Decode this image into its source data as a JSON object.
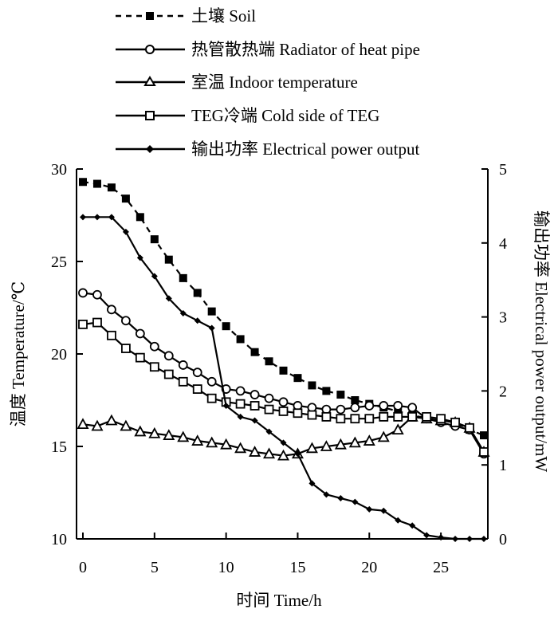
{
  "chart_data": {
    "type": "line",
    "title": "",
    "xlabel": "时间 Time/h",
    "ylabel_left": "温度 Temperature/℃",
    "ylabel_right": "输出功率 Electrical power output/mW",
    "xlim": [
      0,
      28
    ],
    "ylim_left": [
      10,
      30
    ],
    "ylim_right": [
      0,
      5
    ],
    "x_ticks": [
      0,
      5,
      10,
      15,
      20,
      25
    ],
    "y_ticks_left": [
      10,
      15,
      20,
      25,
      30
    ],
    "y_ticks_right": [
      0,
      1,
      2,
      3,
      4,
      5
    ],
    "grid": false,
    "legend_position": "top",
    "series": [
      {
        "name": "土壤 Soil",
        "axis": "left",
        "marker": "filled-square",
        "line": "dashed",
        "x": [
          0,
          1,
          2,
          3,
          4,
          5,
          6,
          7,
          8,
          9,
          10,
          11,
          12,
          13,
          14,
          15,
          16,
          17,
          18,
          19,
          20,
          21,
          22,
          23,
          24,
          25,
          26,
          27,
          28
        ],
        "y": [
          29.3,
          29.2,
          29.0,
          28.4,
          27.4,
          26.2,
          25.1,
          24.1,
          23.3,
          22.3,
          21.5,
          20.8,
          20.1,
          19.6,
          19.1,
          18.7,
          18.3,
          18.0,
          17.8,
          17.5,
          17.3,
          17.1,
          16.9,
          16.7,
          16.5,
          16.4,
          16.3,
          15.9,
          15.6
        ]
      },
      {
        "name": "热管散热端 Radiator of heat pipe",
        "axis": "left",
        "marker": "open-circle",
        "line": "solid",
        "x": [
          0,
          1,
          2,
          3,
          4,
          5,
          6,
          7,
          8,
          9,
          10,
          11,
          12,
          13,
          14,
          15,
          16,
          17,
          18,
          19,
          20,
          21,
          22,
          23,
          24,
          25,
          26,
          27,
          28
        ],
        "y": [
          23.3,
          23.2,
          22.4,
          21.8,
          21.1,
          20.4,
          19.9,
          19.4,
          19.0,
          18.5,
          18.1,
          18.0,
          17.8,
          17.6,
          17.4,
          17.2,
          17.1,
          17.0,
          17.0,
          17.1,
          17.2,
          17.2,
          17.2,
          17.1,
          16.5,
          16.3,
          16.1,
          15.9,
          14.6
        ]
      },
      {
        "name": "室温 Indoor temperature",
        "axis": "left",
        "marker": "open-triangle",
        "line": "solid",
        "x": [
          0,
          1,
          2,
          3,
          4,
          5,
          6,
          7,
          8,
          9,
          10,
          11,
          12,
          13,
          14,
          15,
          16,
          17,
          18,
          19,
          20,
          21,
          22,
          23,
          24,
          25,
          26,
          27,
          28
        ],
        "y": [
          16.2,
          16.1,
          16.4,
          16.1,
          15.8,
          15.7,
          15.6,
          15.5,
          15.3,
          15.2,
          15.1,
          14.9,
          14.7,
          14.6,
          14.5,
          14.6,
          14.9,
          15.0,
          15.1,
          15.2,
          15.3,
          15.5,
          15.9,
          16.6,
          16.5,
          16.4,
          16.3,
          16.0,
          14.7
        ]
      },
      {
        "name": "TEG冷端 Cold side of TEG",
        "axis": "left",
        "marker": "open-square",
        "line": "solid",
        "x": [
          0,
          1,
          2,
          3,
          4,
          5,
          6,
          7,
          8,
          9,
          10,
          11,
          12,
          13,
          14,
          15,
          16,
          17,
          18,
          19,
          20,
          21,
          22,
          23,
          24,
          25,
          26,
          27,
          28
        ],
        "y": [
          21.6,
          21.7,
          21.0,
          20.3,
          19.8,
          19.3,
          18.9,
          18.5,
          18.1,
          17.6,
          17.4,
          17.3,
          17.2,
          17.0,
          16.9,
          16.8,
          16.7,
          16.6,
          16.5,
          16.5,
          16.5,
          16.6,
          16.6,
          16.6,
          16.6,
          16.5,
          16.3,
          16.0,
          14.7
        ]
      },
      {
        "name": "输出功率 Electrical power output",
        "axis": "right",
        "marker": "filled-diamond",
        "line": "solid",
        "x": [
          0,
          1,
          2,
          3,
          4,
          5,
          6,
          7,
          8,
          9,
          10,
          11,
          12,
          13,
          14,
          15,
          16,
          17,
          18,
          19,
          20,
          21,
          22,
          23,
          24,
          25,
          26,
          27,
          28
        ],
        "y": [
          4.35,
          4.35,
          4.35,
          4.15,
          3.8,
          3.55,
          3.25,
          3.05,
          2.95,
          2.85,
          1.8,
          1.65,
          1.6,
          1.45,
          1.3,
          1.15,
          0.75,
          0.6,
          0.55,
          0.5,
          0.4,
          0.38,
          0.25,
          0.18,
          0.05,
          0.02,
          0.0,
          0.0,
          0.0
        ]
      }
    ]
  }
}
